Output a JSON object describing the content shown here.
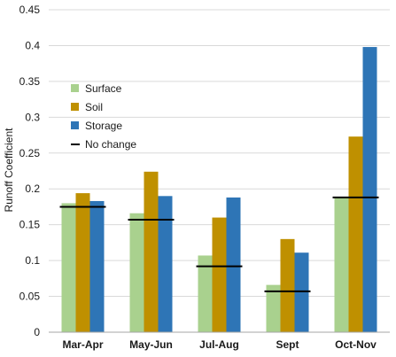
{
  "chart_data": {
    "type": "bar",
    "title": "",
    "xlabel": "",
    "ylabel": "Runoff Coefficient",
    "ylim": [
      0,
      0.45
    ],
    "yticks": [
      "0",
      "0.05",
      "0.1",
      "0.15",
      "0.2",
      "0.25",
      "0.3",
      "0.35",
      "0.4",
      "0.45"
    ],
    "categories": [
      "Mar-Apr",
      "May-Jun",
      "Jul-Aug",
      "Sept",
      "Oct-Nov"
    ],
    "series": [
      {
        "name": "Surface",
        "color": "#a9d18e",
        "values": [
          0.18,
          0.166,
          0.107,
          0.066,
          0.188
        ]
      },
      {
        "name": "Soil",
        "color": "#bf9000",
        "values": [
          0.194,
          0.224,
          0.16,
          0.13,
          0.273
        ]
      },
      {
        "name": "Storage",
        "color": "#2e75b6",
        "values": [
          0.183,
          0.19,
          0.188,
          0.111,
          0.398
        ]
      }
    ],
    "reference": {
      "name": "No change",
      "color": "#000000",
      "values": [
        0.175,
        0.157,
        0.092,
        0.057,
        0.188
      ]
    },
    "grid": "horizontal",
    "legend_position": "left"
  }
}
